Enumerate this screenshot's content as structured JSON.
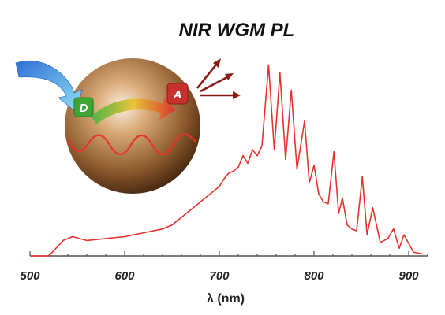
{
  "chart_data": {
    "type": "line",
    "title": "NIR WGM PL",
    "xlabel": "λ (nm)",
    "ylabel": "",
    "xlim": [
      500,
      920
    ],
    "ylim": [
      0,
      1.0
    ],
    "xticks": [
      500,
      600,
      700,
      800,
      900
    ],
    "grid": false,
    "series": [
      {
        "color": "#e8322b",
        "x": [
          500,
          520,
          535,
          545,
          560,
          580,
          600,
          620,
          640,
          650,
          660,
          670,
          680,
          690,
          700,
          705,
          710,
          715,
          720,
          725,
          730,
          735,
          740,
          745,
          752,
          758,
          764,
          770,
          776,
          782,
          790,
          795,
          800,
          805,
          810,
          815,
          821,
          826,
          830,
          835,
          840,
          845,
          851,
          856,
          862,
          870,
          878,
          884,
          890,
          895,
          905,
          915
        ],
        "y": [
          0.0,
          0.0,
          0.08,
          0.1,
          0.08,
          0.09,
          0.1,
          0.12,
          0.14,
          0.16,
          0.2,
          0.24,
          0.28,
          0.32,
          0.36,
          0.4,
          0.43,
          0.44,
          0.46,
          0.52,
          0.48,
          0.55,
          0.52,
          0.57,
          0.99,
          0.55,
          0.95,
          0.5,
          0.86,
          0.45,
          0.7,
          0.38,
          0.47,
          0.32,
          0.28,
          0.27,
          0.54,
          0.22,
          0.3,
          0.16,
          0.14,
          0.13,
          0.41,
          0.11,
          0.25,
          0.07,
          0.09,
          0.14,
          0.04,
          0.11,
          0.02,
          0.01
        ]
      }
    ]
  },
  "inset": {
    "donor_label": "D",
    "acceptor_label": "A"
  },
  "colors": {
    "line": "#e8322b",
    "sphere": "#8a5a2e",
    "donor_box": "#3fa535",
    "acceptor_box": "#c8312e",
    "emission_arrow": "#8b1a12",
    "excitation_arrow": "#43b6e8"
  }
}
